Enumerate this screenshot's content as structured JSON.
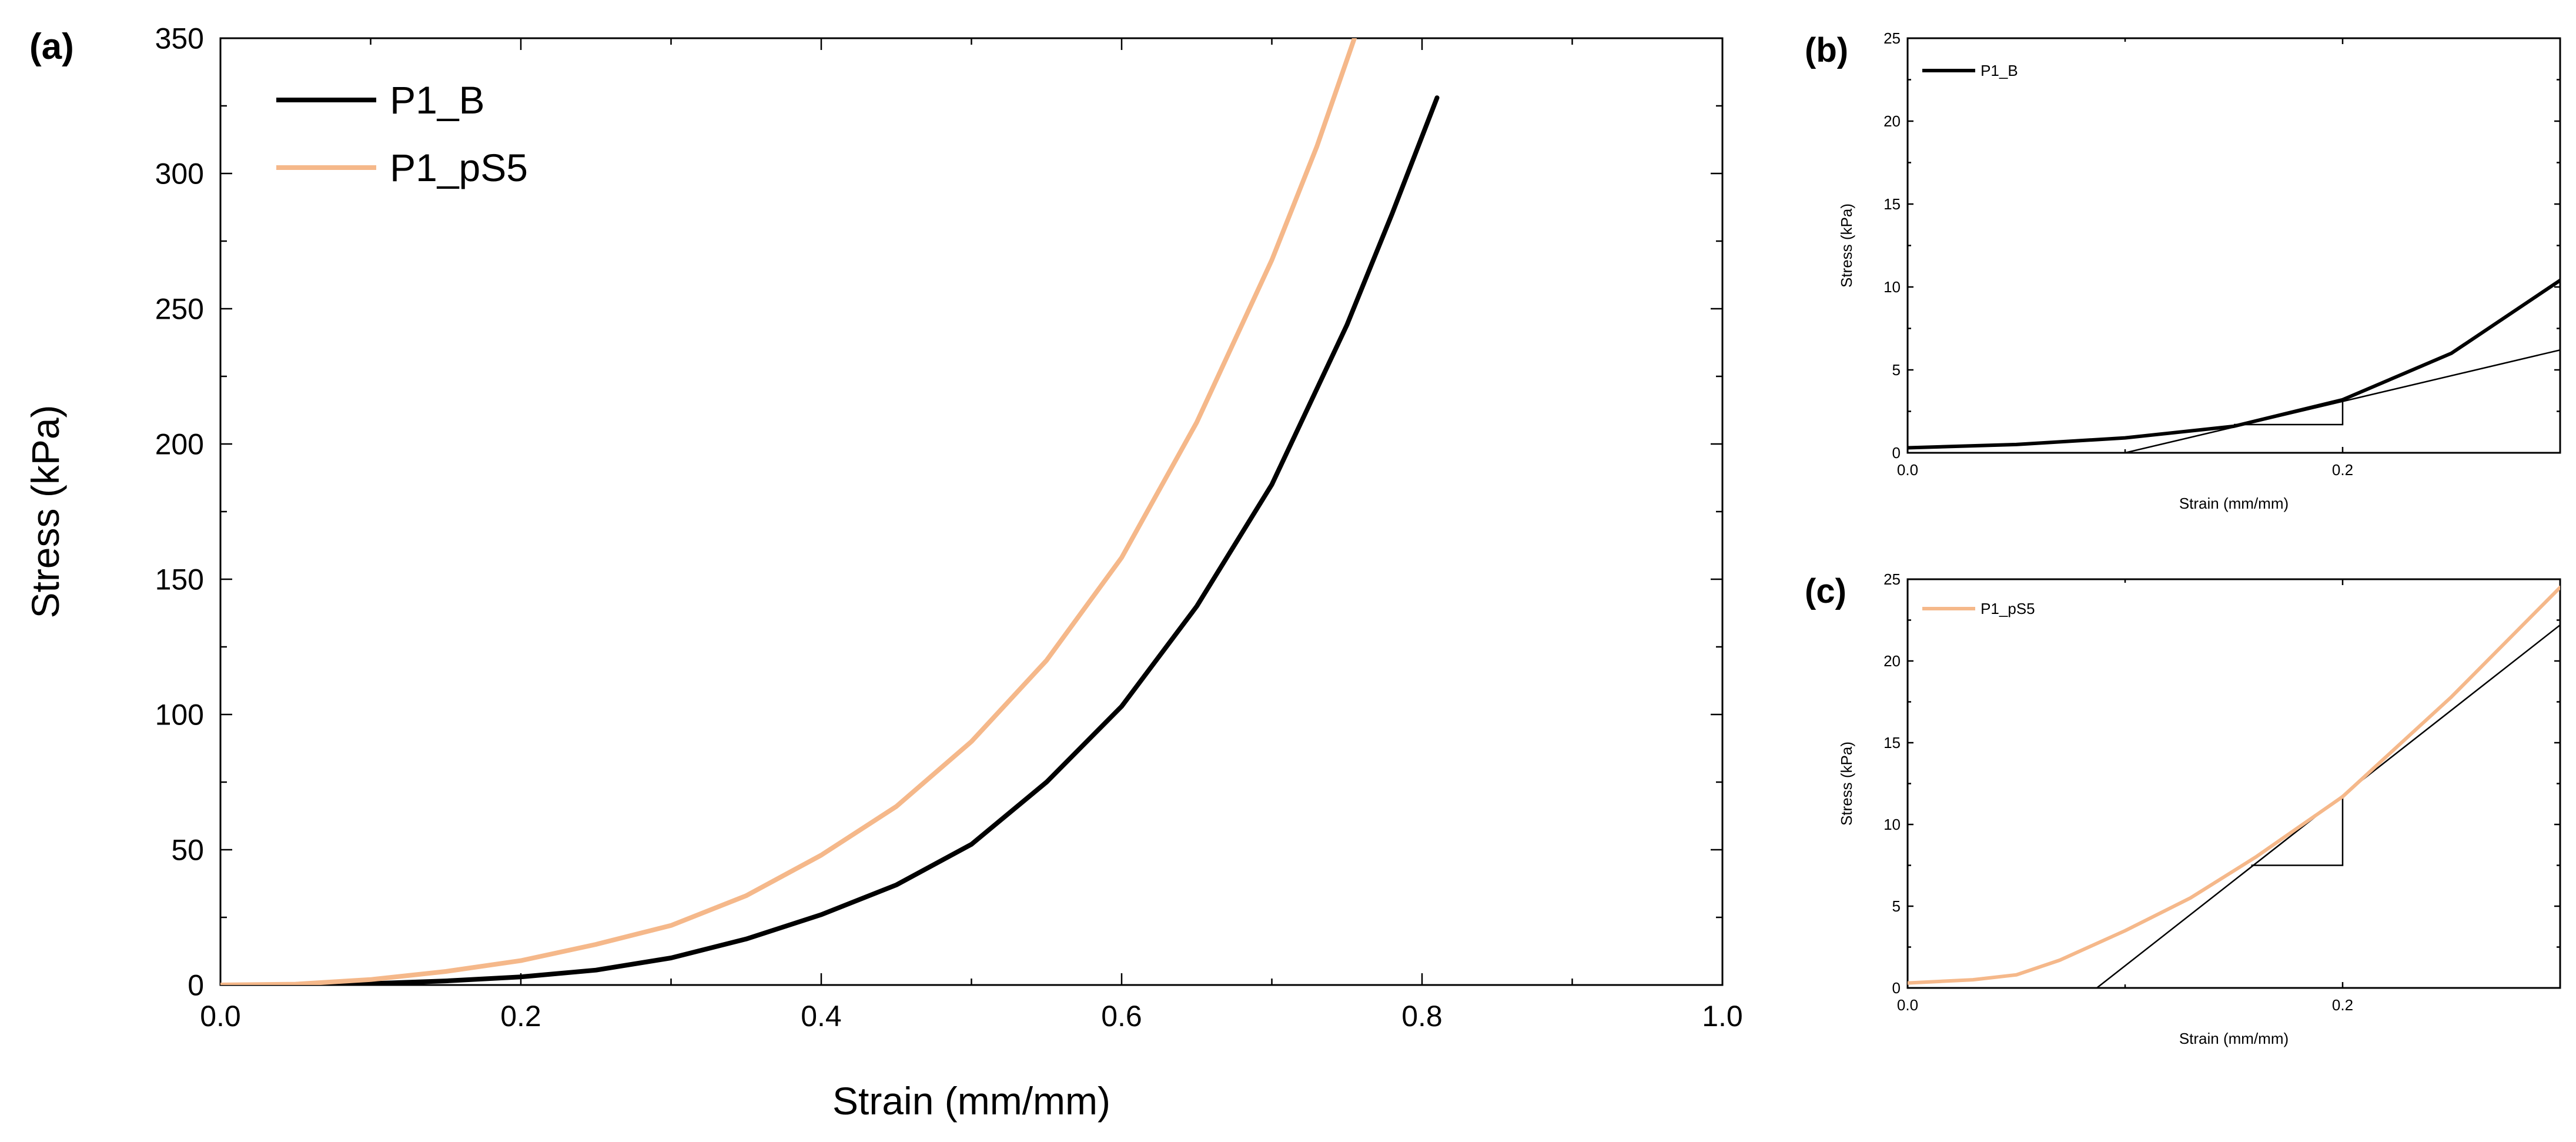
{
  "figure": {
    "colors": {
      "p1_b": "#000000",
      "p1_ps5": "#f5b88a",
      "axis": "#000000",
      "tangent": "#000000"
    }
  },
  "chart_data": [
    {
      "id": "a",
      "panel_label": "(a)",
      "type": "line",
      "xlabel": "Strain (mm/mm)",
      "ylabel": "Stress (kPa)",
      "xlim": [
        0.0,
        1.0
      ],
      "ylim": [
        0,
        350
      ],
      "xticks": [
        0.0,
        0.2,
        0.4,
        0.6,
        0.8,
        1.0
      ],
      "xtick_labels": [
        "0.0",
        "0.2",
        "0.4",
        "0.6",
        "0.8",
        "1.0"
      ],
      "yticks": [
        0,
        50,
        100,
        150,
        200,
        250,
        300,
        350
      ],
      "ytick_labels": [
        "0",
        "50",
        "100",
        "150",
        "200",
        "250",
        "300",
        "350"
      ],
      "legend_position": "top-left",
      "grid": false,
      "series": [
        {
          "name": "P1_B",
          "color_key": "p1_b",
          "x": [
            0.045,
            0.1,
            0.15,
            0.2,
            0.25,
            0.3,
            0.35,
            0.4,
            0.45,
            0.5,
            0.55,
            0.6,
            0.65,
            0.7,
            0.75,
            0.78,
            0.81
          ],
          "y": [
            0,
            0.5,
            1.5,
            3,
            5.5,
            10,
            17,
            26,
            37,
            52,
            75,
            103,
            140,
            185,
            244,
            285,
            328
          ]
        },
        {
          "name": "P1_pS5",
          "color_key": "p1_ps5",
          "x": [
            0.0,
            0.05,
            0.1,
            0.15,
            0.2,
            0.25,
            0.3,
            0.35,
            0.4,
            0.45,
            0.5,
            0.55,
            0.6,
            0.65,
            0.7,
            0.73,
            0.755
          ],
          "y": [
            0,
            0.3,
            2,
            5,
            9,
            15,
            22,
            33,
            48,
            66,
            90,
            120,
            158,
            208,
            268,
            310,
            350
          ]
        }
      ]
    },
    {
      "id": "b",
      "panel_label": "(b)",
      "type": "line",
      "xlabel": "Strain (mm/mm)",
      "ylabel": "Stress (kPa)",
      "xlim": [
        0.0,
        0.3
      ],
      "ylim": [
        0,
        25
      ],
      "xticks": [
        0.0,
        0.2
      ],
      "xtick_labels": [
        "0.0",
        "0.2"
      ],
      "yticks": [
        0,
        5,
        10,
        15,
        20,
        25
      ],
      "ytick_labels": [
        "0",
        "5",
        "10",
        "15",
        "20",
        "25"
      ],
      "legend_position": "top-left",
      "grid": false,
      "series": [
        {
          "name": "P1_B",
          "color_key": "p1_b",
          "x": [
            0.0,
            0.05,
            0.1,
            0.15,
            0.2,
            0.25,
            0.3
          ],
          "y": [
            0.3,
            0.5,
            0.9,
            1.6,
            3.2,
            6.0,
            10.4
          ]
        }
      ],
      "tangent": {
        "x": [
          0.1,
          0.3
        ],
        "y": [
          0,
          6.2
        ]
      },
      "slope_triangle": {
        "x": [
          0.15,
          0.2,
          0.2
        ],
        "y": [
          1.7,
          1.7,
          3.2
        ]
      }
    },
    {
      "id": "c",
      "panel_label": "(c)",
      "type": "line",
      "xlabel": "Strain (mm/mm)",
      "ylabel": "Stress (kPa)",
      "xlim": [
        0.0,
        0.3
      ],
      "ylim": [
        0,
        25
      ],
      "xticks": [
        0.0,
        0.2
      ],
      "xtick_labels": [
        "0.0",
        "0.2"
      ],
      "yticks": [
        0,
        5,
        10,
        15,
        20,
        25
      ],
      "ytick_labels": [
        "0",
        "5",
        "10",
        "15",
        "20",
        "25"
      ],
      "legend_position": "top-left",
      "grid": false,
      "series": [
        {
          "name": "P1_pS5",
          "color_key": "p1_ps5",
          "x": [
            0.0,
            0.03,
            0.05,
            0.07,
            0.1,
            0.13,
            0.16,
            0.2,
            0.25,
            0.3
          ],
          "y": [
            0.3,
            0.5,
            0.8,
            1.7,
            3.5,
            5.5,
            8.0,
            11.7,
            17.8,
            24.5
          ]
        }
      ],
      "tangent": {
        "x": [
          0.087,
          0.3
        ],
        "y": [
          0,
          22.2
        ]
      },
      "slope_triangle": {
        "x": [
          0.158,
          0.2,
          0.2
        ],
        "y": [
          7.5,
          7.5,
          11.8
        ]
      }
    }
  ]
}
